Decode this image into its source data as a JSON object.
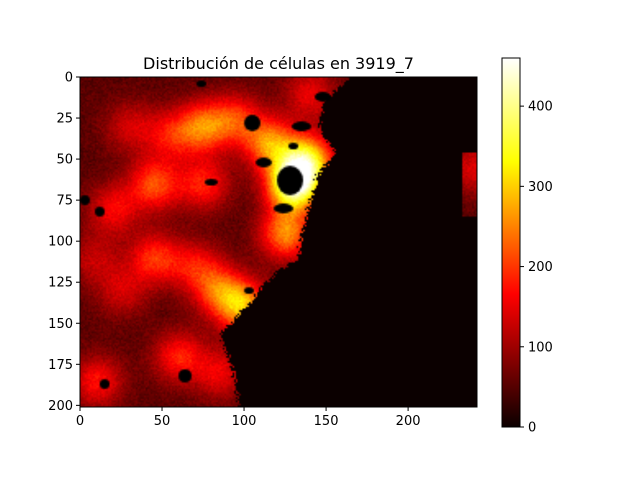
{
  "chart_data": {
    "type": "heatmap",
    "title": "Distribución de células en 3919_7",
    "xlabel": "",
    "ylabel": "",
    "x_range": [
      0,
      242
    ],
    "y_range": [
      0,
      201
    ],
    "y_inverted": true,
    "x_ticks": [
      "0",
      "50",
      "100",
      "150",
      "200"
    ],
    "y_ticks": [
      "0",
      "25",
      "50",
      "75",
      "100",
      "125",
      "150",
      "175",
      "200"
    ],
    "colormap": "hot",
    "colorbar": {
      "range": [
        0,
        460
      ],
      "ticks": [
        "0",
        "100",
        "200",
        "300",
        "400"
      ],
      "placement": "right"
    },
    "hotspots": [
      {
        "x": 130,
        "y": 65,
        "value": 430
      },
      {
        "x": 138,
        "y": 50,
        "value": 300
      },
      {
        "x": 115,
        "y": 40,
        "value": 240
      },
      {
        "x": 125,
        "y": 95,
        "value": 240
      },
      {
        "x": 100,
        "y": 140,
        "value": 250
      },
      {
        "x": 85,
        "y": 130,
        "value": 200
      },
      {
        "x": 75,
        "y": 30,
        "value": 220
      },
      {
        "x": 95,
        "y": 25,
        "value": 170
      },
      {
        "x": 45,
        "y": 65,
        "value": 200
      },
      {
        "x": 75,
        "y": 65,
        "value": 170
      },
      {
        "x": 55,
        "y": 35,
        "value": 150
      },
      {
        "x": 45,
        "y": 110,
        "value": 180
      },
      {
        "x": 70,
        "y": 115,
        "value": 150
      },
      {
        "x": 20,
        "y": 80,
        "value": 150
      },
      {
        "x": 10,
        "y": 185,
        "value": 160
      },
      {
        "x": 60,
        "y": 170,
        "value": 170
      },
      {
        "x": 85,
        "y": 180,
        "value": 140
      },
      {
        "x": 25,
        "y": 130,
        "value": 120
      },
      {
        "x": 30,
        "y": 30,
        "value": 120
      },
      {
        "x": 140,
        "y": 10,
        "value": 140
      },
      {
        "x": 8,
        "y": 110,
        "value": 110
      },
      {
        "x": 240,
        "y": 55,
        "value": 130
      }
    ],
    "empty_region_boundary": [
      [
        165,
        0
      ],
      [
        155,
        8
      ],
      [
        148,
        15
      ],
      [
        145,
        30
      ],
      [
        150,
        38
      ],
      [
        155,
        45
      ],
      [
        150,
        52
      ],
      [
        145,
        58
      ],
      [
        140,
        75
      ],
      [
        135,
        95
      ],
      [
        132,
        110
      ],
      [
        120,
        118
      ],
      [
        110,
        128
      ],
      [
        105,
        135
      ],
      [
        95,
        145
      ],
      [
        92,
        150
      ],
      [
        85,
        155
      ],
      [
        88,
        165
      ],
      [
        92,
        175
      ],
      [
        95,
        190
      ],
      [
        97,
        201
      ]
    ]
  }
}
